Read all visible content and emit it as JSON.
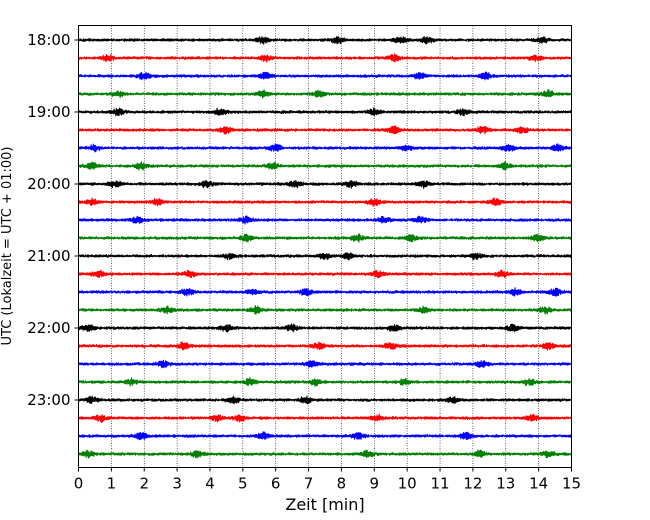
{
  "chart_data": {
    "type": "line",
    "xlabel": "Zeit  [min]",
    "ylabel": "UTC (Lokalzeit = UTC + 01:00)",
    "xlim": [
      0,
      15
    ],
    "xticks": [
      "0",
      "1",
      "2",
      "3",
      "4",
      "5",
      "6",
      "7",
      "8",
      "9",
      "10",
      "11",
      "12",
      "13",
      "14",
      "15"
    ],
    "ytick_labels": [
      "18:00",
      "19:00",
      "20:00",
      "21:00",
      "22:00",
      "23:00"
    ],
    "row_interval_minutes": 15,
    "row_count": 24,
    "row_colors": [
      "#000000",
      "#ff0000",
      "#0000ff",
      "#007f00"
    ],
    "grid": "vertical dotted lines at each minute",
    "rows": [
      {
        "time": "18:00",
        "color": "#000000",
        "notable_bursts_min": [
          5.6,
          7.9,
          9.8,
          10.6,
          14.1
        ]
      },
      {
        "time": "18:15",
        "color": "#ff0000",
        "notable_bursts_min": [
          0.9,
          5.7,
          9.6,
          13.9
        ]
      },
      {
        "time": "18:30",
        "color": "#0000ff",
        "notable_bursts_min": [
          2.0,
          5.7,
          10.4,
          12.4
        ]
      },
      {
        "time": "18:45",
        "color": "#007f00",
        "notable_bursts_min": [
          1.2,
          5.6,
          7.3,
          14.3
        ]
      },
      {
        "time": "19:00",
        "color": "#000000",
        "notable_bursts_min": [
          1.2,
          4.3,
          9.0,
          11.7
        ]
      },
      {
        "time": "19:15",
        "color": "#ff0000",
        "notable_bursts_min": [
          4.5,
          9.6,
          12.3,
          13.5
        ]
      },
      {
        "time": "19:30",
        "color": "#0000ff",
        "notable_bursts_min": [
          0.5,
          6.0,
          10.0,
          13.1,
          14.6
        ]
      },
      {
        "time": "19:45",
        "color": "#007f00",
        "notable_bursts_min": [
          0.4,
          1.9,
          5.9,
          13.0
        ]
      },
      {
        "time": "20:00",
        "color": "#000000",
        "notable_bursts_min": [
          1.1,
          3.9,
          6.6,
          8.3,
          10.5
        ]
      },
      {
        "time": "20:15",
        "color": "#ff0000",
        "notable_bursts_min": [
          0.4,
          2.4,
          9.0,
          12.7
        ]
      },
      {
        "time": "20:30",
        "color": "#0000ff",
        "notable_bursts_min": [
          1.8,
          5.1,
          9.3,
          10.4
        ]
      },
      {
        "time": "20:45",
        "color": "#007f00",
        "notable_bursts_min": [
          5.1,
          8.5,
          10.1,
          14.0
        ]
      },
      {
        "time": "21:00",
        "color": "#000000",
        "notable_bursts_min": [
          4.6,
          7.5,
          8.2,
          12.1
        ]
      },
      {
        "time": "21:15",
        "color": "#ff0000",
        "notable_bursts_min": [
          0.6,
          3.4,
          9.1,
          12.9
        ]
      },
      {
        "time": "21:30",
        "color": "#0000ff",
        "notable_bursts_min": [
          3.3,
          5.3,
          6.9,
          13.3,
          14.5
        ]
      },
      {
        "time": "21:45",
        "color": "#007f00",
        "notable_bursts_min": [
          2.7,
          5.4,
          10.5,
          14.2
        ]
      },
      {
        "time": "22:00",
        "color": "#000000",
        "notable_bursts_min": [
          0.3,
          4.5,
          6.5,
          9.6,
          13.2
        ]
      },
      {
        "time": "22:15",
        "color": "#ff0000",
        "notable_bursts_min": [
          3.2,
          7.3,
          9.5,
          14.3
        ]
      },
      {
        "time": "22:30",
        "color": "#0000ff",
        "notable_bursts_min": [
          2.6,
          7.1,
          12.3
        ]
      },
      {
        "time": "22:45",
        "color": "#007f00",
        "notable_bursts_min": [
          1.6,
          5.2,
          7.2,
          9.9,
          13.7
        ]
      },
      {
        "time": "23:00",
        "color": "#000000",
        "notable_bursts_min": [
          0.4,
          4.7,
          6.9,
          11.4
        ]
      },
      {
        "time": "23:15",
        "color": "#ff0000",
        "notable_bursts_min": [
          0.7,
          4.2,
          4.9,
          9.1,
          13.8
        ]
      },
      {
        "time": "23:30",
        "color": "#0000ff",
        "notable_bursts_min": [
          1.9,
          5.6,
          8.5,
          11.8
        ]
      },
      {
        "time": "23:45",
        "color": "#007f00",
        "notable_bursts_min": [
          0.3,
          3.6,
          8.8,
          12.2,
          14.3
        ]
      }
    ]
  }
}
